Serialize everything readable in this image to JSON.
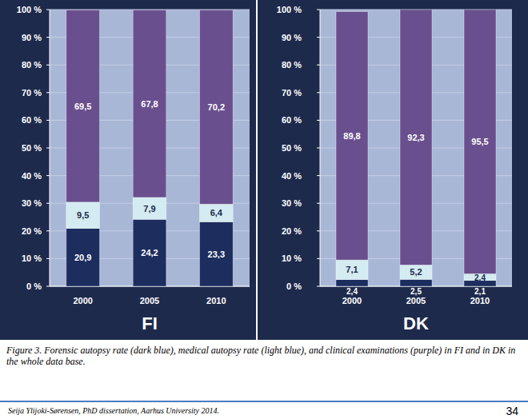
{
  "chart_data": [
    {
      "type": "bar",
      "title": "FI",
      "categories": [
        "2000",
        "2005",
        "2010"
      ],
      "stacked": true,
      "data_labels": true,
      "grid": true,
      "ylim": [
        0,
        100
      ],
      "yticks": [
        {
          "value": 0,
          "label": "0 %"
        },
        {
          "value": 10,
          "label": "10 %"
        },
        {
          "value": 20,
          "label": "20 %"
        },
        {
          "value": 30,
          "label": "30 %"
        },
        {
          "value": 40,
          "label": "40 %"
        },
        {
          "value": 50,
          "label": "50 %"
        },
        {
          "value": 60,
          "label": "60 %"
        },
        {
          "value": 70,
          "label": "70 %"
        },
        {
          "value": 80,
          "label": "80 %"
        },
        {
          "value": 90,
          "label": "90 %"
        },
        {
          "value": 100,
          "label": "100 %"
        }
      ],
      "series": [
        {
          "color": "#1c2d5e",
          "values": [
            20.9,
            24.2,
            23.3
          ],
          "value_labels": [
            "20,9",
            "24,2",
            "23,3"
          ]
        },
        {
          "color": "#d3ebf1",
          "values": [
            9.5,
            7.9,
            6.4
          ],
          "value_labels": [
            "9,5",
            "7,9",
            "6,4"
          ]
        },
        {
          "color": "#6a4f8e",
          "values": [
            69.5,
            67.8,
            70.2
          ],
          "value_labels": [
            "69,5",
            "67,8",
            "70,2"
          ]
        }
      ]
    },
    {
      "type": "bar",
      "title": "DK",
      "categories": [
        "2000",
        "2005",
        "2010"
      ],
      "stacked": true,
      "data_labels": true,
      "grid": true,
      "ylim": [
        0,
        100
      ],
      "yticks": [
        {
          "value": 0,
          "label": "0 %"
        },
        {
          "value": 10,
          "label": "10 %"
        },
        {
          "value": 20,
          "label": "20 %"
        },
        {
          "value": 30,
          "label": "30 %"
        },
        {
          "value": 40,
          "label": "40 %"
        },
        {
          "value": 50,
          "label": "50 %"
        },
        {
          "value": 60,
          "label": "60 %"
        },
        {
          "value": 70,
          "label": "70 %"
        },
        {
          "value": 80,
          "label": "80 %"
        },
        {
          "value": 90,
          "label": "90 %"
        },
        {
          "value": 100,
          "label": "100 %"
        }
      ],
      "series": [
        {
          "color": "#1c2d5e",
          "values": [
            2.4,
            2.5,
            2.1
          ],
          "value_labels": [
            "2,4",
            "2,5",
            "2,1"
          ]
        },
        {
          "color": "#d3ebf1",
          "values": [
            7.1,
            5.2,
            2.4
          ],
          "value_labels": [
            "7,1",
            "5,2",
            "2,4"
          ]
        },
        {
          "color": "#6a4f8e",
          "values": [
            89.8,
            92.3,
            95.5
          ],
          "value_labels": [
            "89,8",
            "92,3",
            "95,5"
          ]
        }
      ]
    }
  ],
  "caption": "Figure 3. Forensic autopsy rate (dark blue), medical autopsy rate (light blue), and clinical examinations (purple) in FI and in DK in the whole data base.",
  "footer": "Seija Ylijoki-Sørensen, PhD dissertation, Aarhus University 2014.",
  "page_number": 34
}
